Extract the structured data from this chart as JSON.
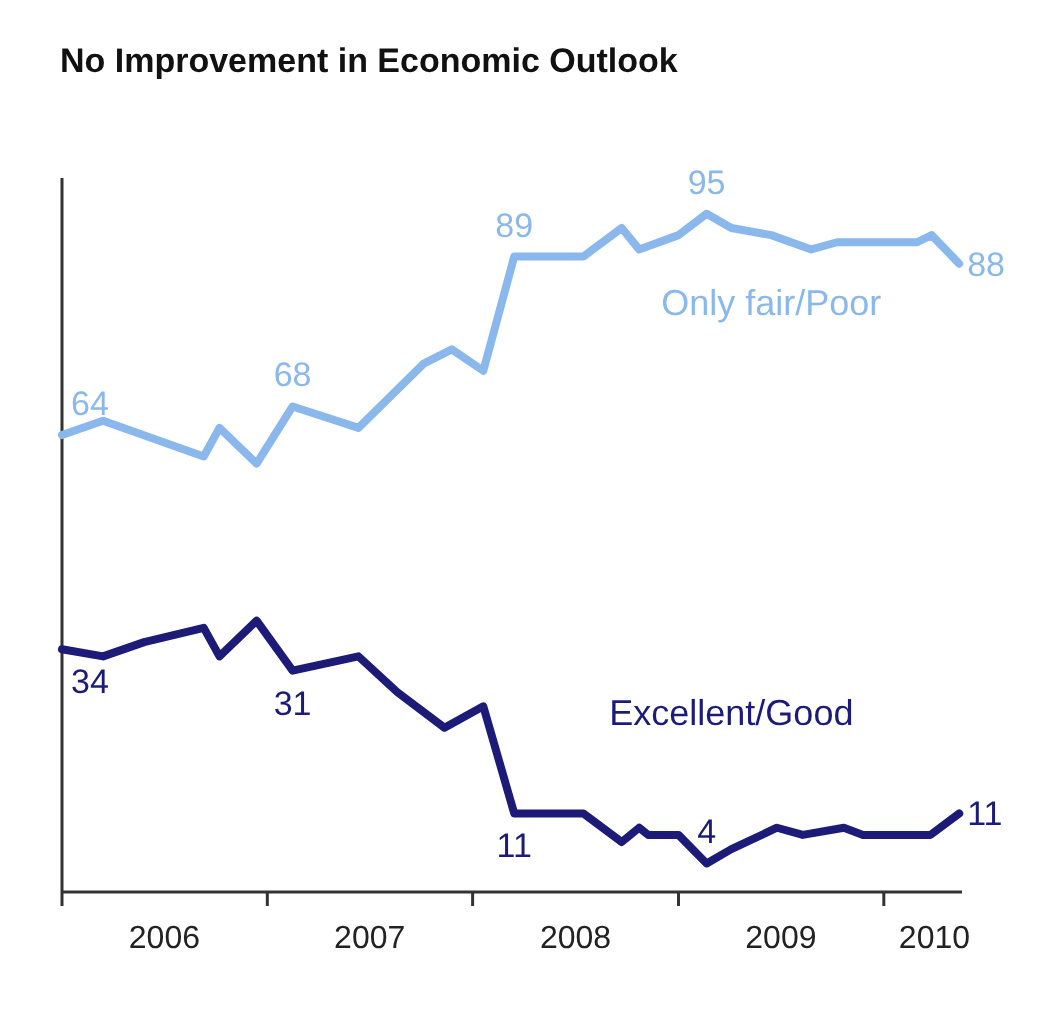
{
  "chart_data": {
    "type": "line",
    "title": "No Improvement in Economic Outlook",
    "xlim": [
      "2006-01-01",
      "2010-05-20"
    ],
    "ylim": [
      0,
      100
    ],
    "xticks": [
      {
        "value": "2006-01-01",
        "label": null
      },
      {
        "value": "2006-07-02",
        "label": "2006"
      },
      {
        "value": "2007-01-01",
        "label": null
      },
      {
        "value": "2007-07-02",
        "label": "2007"
      },
      {
        "value": "2008-01-01",
        "label": null
      },
      {
        "value": "2008-07-02",
        "label": "2008"
      },
      {
        "value": "2009-01-01",
        "label": null
      },
      {
        "value": "2009-07-02",
        "label": "2009"
      },
      {
        "value": "2010-01-01",
        "label": null
      },
      {
        "value": "2010-04-01",
        "label": "2010"
      }
    ],
    "tick_labels": "x",
    "legend": false,
    "marker": "none",
    "line_style": "solid",
    "series": [
      {
        "name": "Only fair/Poor",
        "color": "#8ab8ec",
        "x": [
          "2006-01-01",
          "2006-03-15",
          "2006-09-10",
          "2006-10-08",
          "2006-12-13",
          "2007-02-15",
          "2007-06-12",
          "2007-10-06",
          "2007-11-25",
          "2008-01-20",
          "2008-03-15",
          "2008-07-16",
          "2008-09-22",
          "2008-10-23",
          "2009-01-01",
          "2009-02-20",
          "2009-04-05",
          "2009-06-15",
          "2009-08-25",
          "2009-10-10",
          "2010-03-01",
          "2010-03-27",
          "2010-05-15"
        ],
        "values": [
          64,
          66,
          61,
          65,
          60,
          68,
          65,
          74,
          76,
          73,
          89,
          89,
          93,
          90,
          92,
          95,
          93,
          92,
          90,
          91,
          91,
          92,
          88
        ],
        "value_labels": [
          "64",
          null,
          null,
          null,
          null,
          "68",
          null,
          null,
          null,
          null,
          "89",
          null,
          null,
          null,
          null,
          "95",
          null,
          null,
          null,
          null,
          null,
          null,
          "88"
        ]
      },
      {
        "name": "Excellent/Good",
        "color": "#1c1c78",
        "x": [
          "2006-01-01",
          "2006-03-15",
          "2006-05-27",
          "2006-09-10",
          "2006-10-08",
          "2006-12-13",
          "2007-02-15",
          "2007-06-12",
          "2007-08-20",
          "2007-11-12",
          "2008-01-20",
          "2008-03-15",
          "2008-07-16",
          "2008-09-22",
          "2008-10-23",
          "2008-11-08",
          "2009-01-01",
          "2009-02-20",
          "2009-04-05",
          "2009-06-25",
          "2009-08-10",
          "2009-10-22",
          "2009-11-25",
          "2010-03-25",
          "2010-05-15"
        ],
        "values": [
          34,
          33,
          35,
          37,
          33,
          38,
          31,
          33,
          28,
          23,
          26,
          11,
          11,
          7,
          9,
          8,
          8,
          4,
          6,
          9,
          8,
          9,
          8,
          8,
          11
        ],
        "value_labels": [
          "34",
          null,
          null,
          null,
          null,
          null,
          "31",
          null,
          null,
          null,
          null,
          "11",
          null,
          null,
          null,
          null,
          null,
          "4",
          null,
          null,
          null,
          null,
          null,
          null,
          "11"
        ]
      }
    ]
  }
}
